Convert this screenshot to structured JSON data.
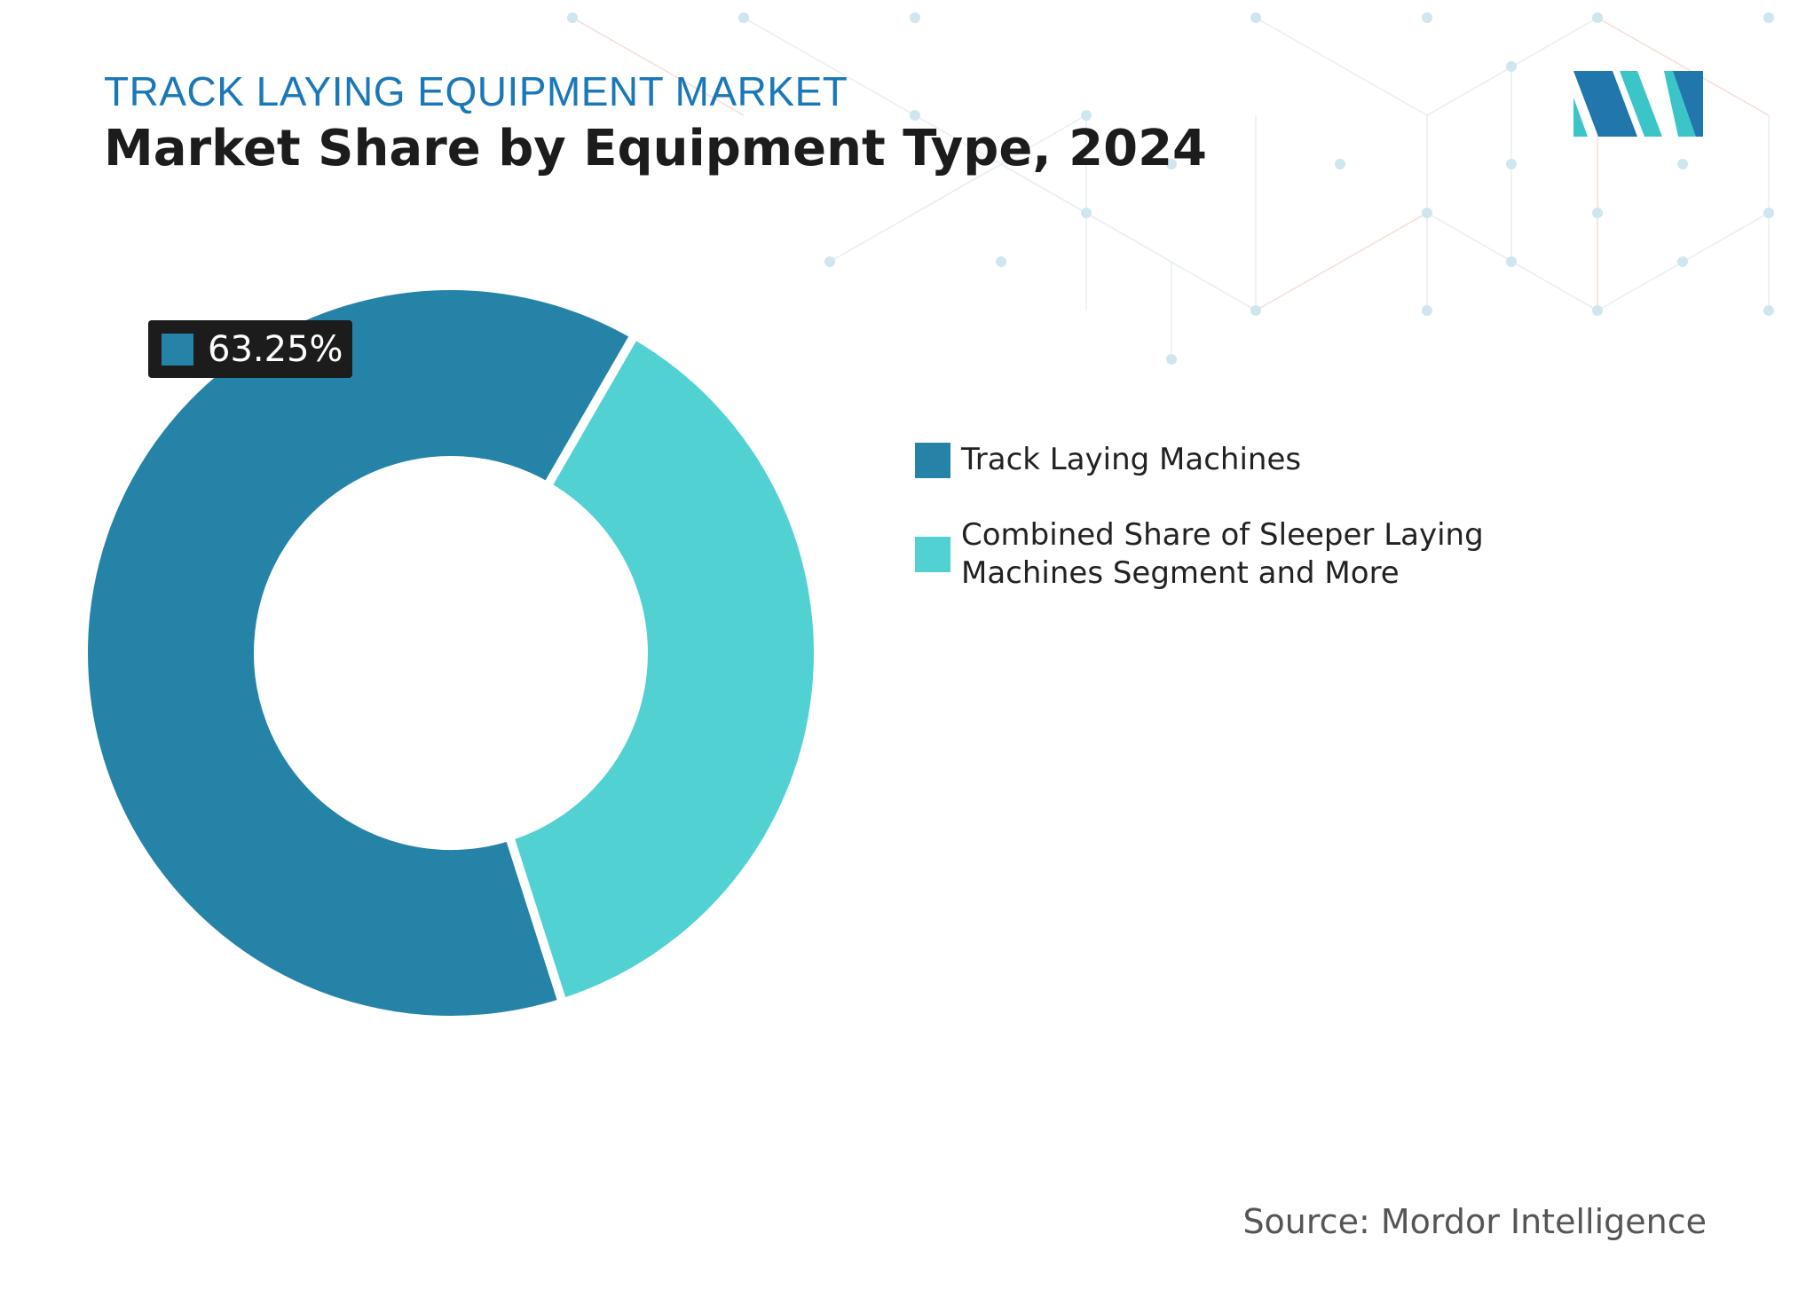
{
  "header": {
    "subtitle": "TRACK LAYING EQUIPMENT MARKET",
    "title": "Market Share by Equipment Type, 2024"
  },
  "colors": {
    "track_laying": "#2683a8",
    "combined": "#52d1d3",
    "subtitle": "#1a78b8",
    "logo_dark": "#2176ab",
    "logo_light": "#3bc5c9"
  },
  "chart_data": {
    "type": "pie",
    "variant": "donut",
    "series": [
      {
        "name": "Track Laying Machines",
        "value": 63.25,
        "color": "#2683a8"
      },
      {
        "name": "Combined Share of Sleeper Laying Machines Segment and More",
        "value": 36.75,
        "color": "#52d1d3"
      }
    ],
    "data_labels": [
      "63.25%"
    ],
    "legend": "right"
  },
  "value_label": {
    "text": "63.25%"
  },
  "source": "Source: Mordor Intelligence"
}
